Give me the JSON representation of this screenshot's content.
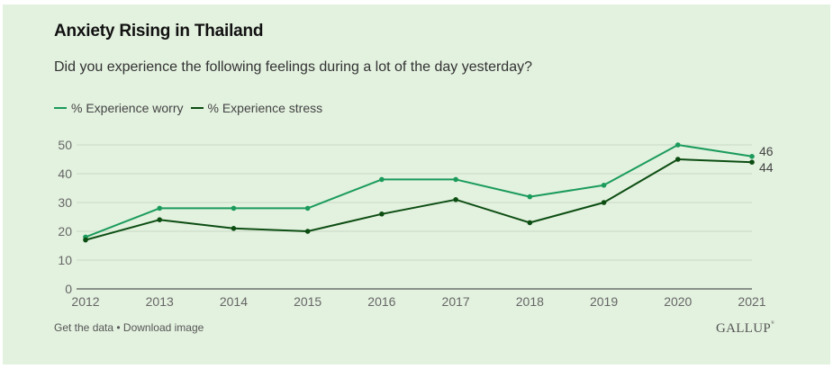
{
  "header": {
    "title": "Anxiety Rising in Thailand",
    "subtitle": "Did you experience the following feelings during a lot of the day yesterday?"
  },
  "legend": [
    {
      "label": "% Experience worry",
      "color": "#1a9b5b"
    },
    {
      "label": "% Experience stress",
      "color": "#0c4d12"
    }
  ],
  "footer": {
    "get_data": "Get the data",
    "separator": " • ",
    "download": "Download image",
    "logo": "GALLUP"
  },
  "chart_data": {
    "type": "line",
    "title": "Anxiety Rising in Thailand",
    "subtitle": "Did you experience the following feelings during a lot of the day yesterday?",
    "xlabel": "",
    "ylabel": "",
    "x": [
      "2012",
      "2013",
      "2014",
      "2015",
      "2016",
      "2017",
      "2018",
      "2019",
      "2020",
      "2021"
    ],
    "ylim": [
      0,
      50
    ],
    "yticks": [
      0,
      10,
      20,
      30,
      40,
      50
    ],
    "grid": true,
    "legend_position": "top-left",
    "series": [
      {
        "name": "% Experience worry",
        "color": "#1a9b5b",
        "values": [
          18,
          28,
          28,
          28,
          38,
          38,
          32,
          36,
          50,
          46
        ]
      },
      {
        "name": "% Experience stress",
        "color": "#0c4d12",
        "values": [
          17,
          24,
          21,
          20,
          26,
          31,
          23,
          30,
          45,
          44
        ]
      }
    ],
    "end_labels": [
      "46",
      "44"
    ]
  }
}
